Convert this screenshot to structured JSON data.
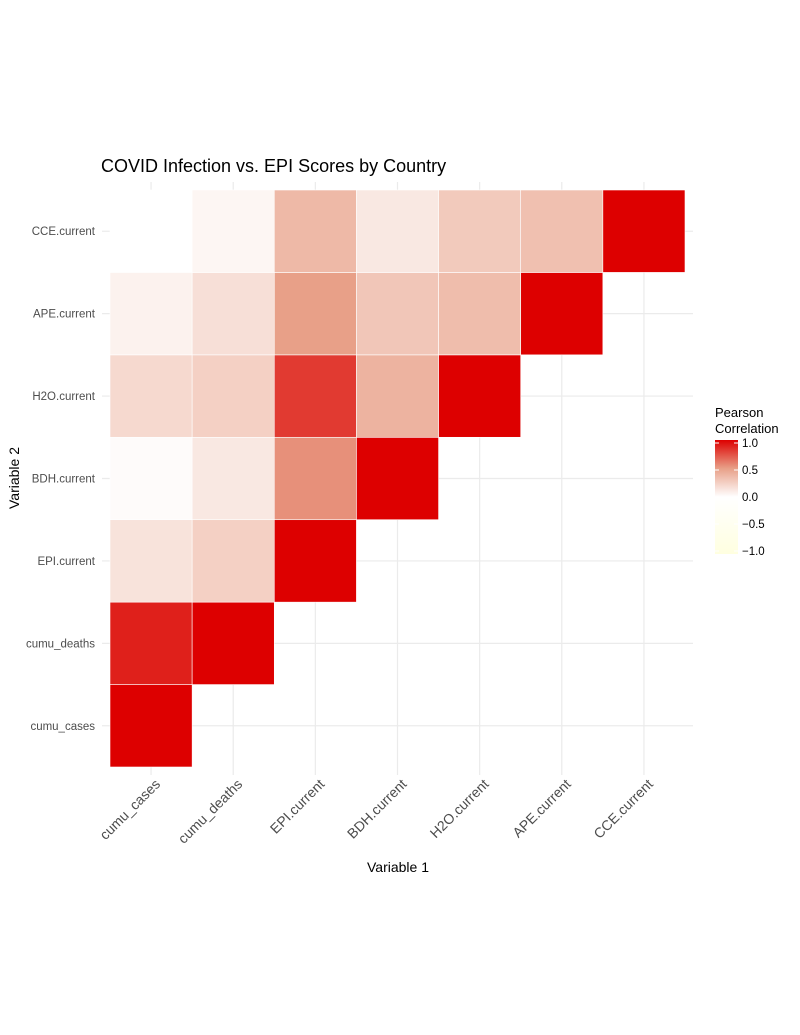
{
  "chart_data": {
    "type": "heatmap",
    "title": "COVID Infection vs. EPI Scores by Country",
    "xlabel": "Variable 1",
    "ylabel": "Variable 2",
    "variables": [
      "cumu_cases",
      "cumu_deaths",
      "EPI.current",
      "BDH.current",
      "H2O.current",
      "APE.current",
      "CCE.current"
    ],
    "matrix_lower_triangle": [
      [
        1.0
      ],
      [
        0.9,
        1.0
      ],
      [
        0.15,
        0.25,
        1.0
      ],
      [
        0.02,
        0.12,
        0.55,
        1.0
      ],
      [
        0.2,
        0.25,
        0.82,
        0.4,
        1.0
      ],
      [
        0.07,
        0.17,
        0.5,
        0.3,
        0.35,
        1.0
      ],
      [
        0.0,
        0.05,
        0.37,
        0.12,
        0.28,
        0.33,
        1.0
      ]
    ],
    "legend": {
      "title_line1": "Pearson",
      "title_line2": "Correlation",
      "ticks": [
        "1.0",
        "0.5",
        "0.0",
        "−0.5",
        "−1.0"
      ],
      "tick_values": [
        1.0,
        0.5,
        0.0,
        -0.5,
        -1.0
      ],
      "limits": [
        -1,
        1
      ],
      "placement": "right"
    },
    "colors": {
      "high": "#DD0000",
      "mid": "#FFFFFF",
      "low": "#FFFFE0",
      "grid": "#EBEBEB"
    },
    "grid": true
  }
}
